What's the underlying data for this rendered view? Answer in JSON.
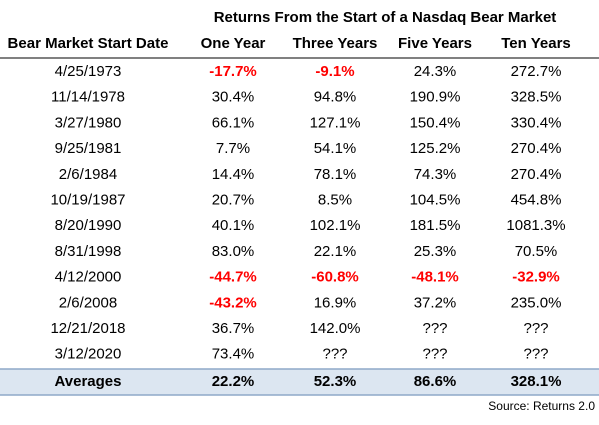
{
  "title": "Returns From the Start of a Nasdaq Bear Market",
  "negative_color": "#ff0000",
  "table": {
    "header": [
      "Bear Market Start Date",
      "One Year",
      "Three Years",
      "Five Years",
      "Ten Years"
    ],
    "rows": [
      [
        "4/25/1973",
        "-17.7%",
        "-9.1%",
        "24.3%",
        "272.7%"
      ],
      [
        "11/14/1978",
        "30.4%",
        "94.8%",
        "190.9%",
        "328.5%"
      ],
      [
        "3/27/1980",
        "66.1%",
        "127.1%",
        "150.4%",
        "330.4%"
      ],
      [
        "9/25/1981",
        "7.7%",
        "54.1%",
        "125.2%",
        "270.4%"
      ],
      [
        "2/6/1984",
        "14.4%",
        "78.1%",
        "74.3%",
        "270.4%"
      ],
      [
        "10/19/1987",
        "20.7%",
        "8.5%",
        "104.5%",
        "454.8%"
      ],
      [
        "8/20/1990",
        "40.1%",
        "102.1%",
        "181.5%",
        "1081.3%"
      ],
      [
        "8/31/1998",
        "83.0%",
        "22.1%",
        "25.3%",
        "70.5%"
      ],
      [
        "4/12/2000",
        "-44.7%",
        "-60.8%",
        "-48.1%",
        "-32.9%"
      ],
      [
        "2/6/2008",
        "-43.2%",
        "16.9%",
        "37.2%",
        "235.0%"
      ],
      [
        "12/21/2018",
        "36.7%",
        "142.0%",
        "???",
        "???"
      ],
      [
        "3/12/2020",
        "73.4%",
        "???",
        "???",
        "???"
      ]
    ],
    "footer": [
      "Averages",
      "22.2%",
      "52.3%",
      "86.6%",
      "328.1%"
    ]
  },
  "source": "Source: Returns 2.0"
}
